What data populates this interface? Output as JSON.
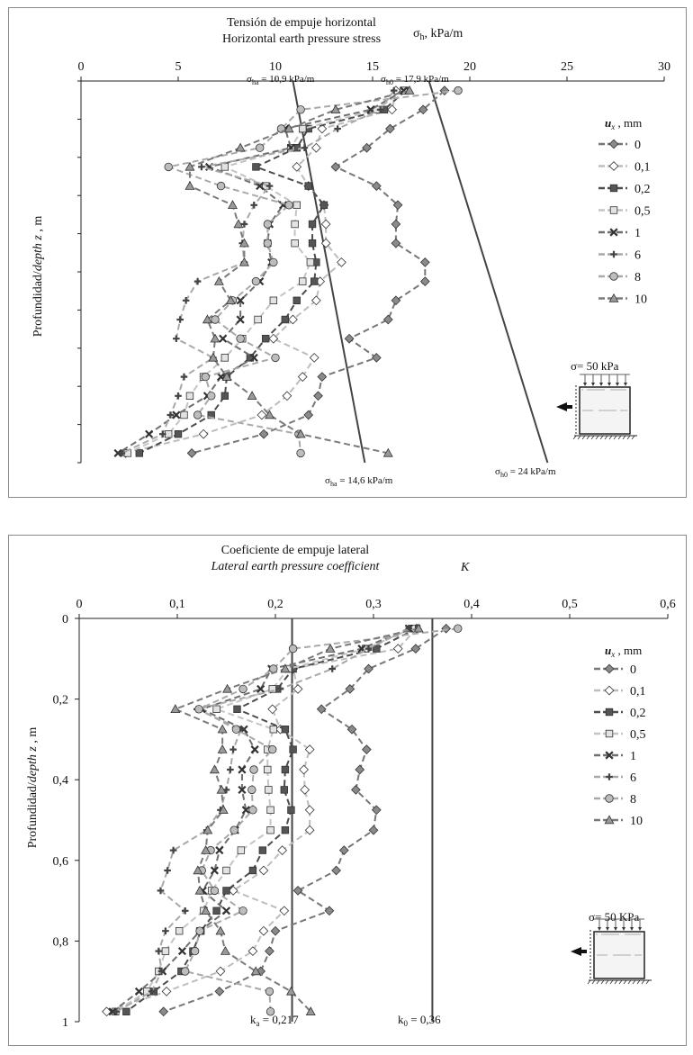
{
  "charts": [
    {
      "title_es": "Tensión de empuje horizontal",
      "title_en": "Horizontal earth pressure stress",
      "axis_unit_main": "σ",
      "axis_unit_sub": "h",
      "axis_unit_rest": ", kPa/m",
      "ylabel_main": "Profundidad/",
      "ylabel_italic": "depth  z",
      "ylabel_rest": " , m",
      "legend_title_italic": "u",
      "legend_title_sub": "x",
      "legend_title_rest": " , mm",
      "inset_label": "σ= 50 kPa",
      "annotations": [
        {
          "sym": "σ",
          "sub": "ha",
          "rest": " = 10,9 kPa/m"
        },
        {
          "sym": "σ",
          "sub": "h0",
          "rest": " = 17,9 kPa/m"
        },
        {
          "sym": "σ",
          "sub": "ha",
          "rest": " = 14,6 kPa/m"
        },
        {
          "sym": "σ",
          "sub": "h0",
          "rest": " = 24 kPa/m"
        }
      ]
    },
    {
      "title_es": "Coeficiente de empuje lateral",
      "title_en": "Lateral earth pressure coefficient",
      "axis_symbol": "K",
      "ylabel_main": "Profundidad/",
      "ylabel_italic": "depth  z",
      "ylabel_rest": " , m",
      "legend_title_italic": "u",
      "legend_title_sub": "x",
      "legend_title_rest": " , mm",
      "inset_label": "σ= 50 KPa",
      "annotations": [
        {
          "sym": "k",
          "sub": "a",
          "rest": " = 0,217"
        },
        {
          "sym": "k",
          "sub": "0",
          "rest": " = 0,36"
        }
      ]
    }
  ],
  "chart_data": [
    {
      "type": "line",
      "xlim": [
        0,
        30
      ],
      "x_ticks": [
        0,
        5,
        10,
        15,
        20,
        25,
        30
      ],
      "x_tick_labels": [
        "0",
        "5",
        "10",
        "15",
        "20",
        "25",
        "30"
      ],
      "x_axis_position": "top",
      "ylim": [
        0,
        1
      ],
      "y_reversed": true,
      "y_tick_labels_shown": false,
      "grid": false,
      "legend_position": "right",
      "depths": [
        0.025,
        0.075,
        0.125,
        0.175,
        0.225,
        0.275,
        0.325,
        0.375,
        0.425,
        0.475,
        0.525,
        0.575,
        0.625,
        0.675,
        0.725,
        0.775,
        0.825,
        0.875,
        0.925,
        0.975
      ],
      "series": [
        {
          "name": "0",
          "values": [
            18.7,
            17.6,
            15.9,
            14.7,
            13.1,
            15.2,
            16.3,
            16.2,
            16.2,
            17.7,
            17.7,
            16.2,
            15.8,
            13.8,
            15.2,
            12.4,
            12.2,
            11.7,
            9.4,
            5.7
          ]
        },
        {
          "name": "0,1",
          "values": [
            16.2,
            16.0,
            12.4,
            12.1,
            11.1,
            11.7,
            12.5,
            12.6,
            12.6,
            13.4,
            12.3,
            12.1,
            10.9,
            9.9,
            12.0,
            11.4,
            10.6,
            9.3,
            6.3,
            2.3
          ]
        },
        {
          "name": "0,2",
          "values": [
            16.7,
            15.6,
            11.7,
            11.1,
            9.0,
            11.7,
            12.5,
            11.9,
            11.9,
            12.1,
            12.0,
            11.1,
            10.5,
            9.5,
            8.7,
            7.5,
            7.4,
            6.7,
            5.0,
            3.0
          ]
        },
        {
          "name": "0,5",
          "values": [
            16.6,
            15.2,
            11.4,
            10.8,
            7.4,
            9.5,
            11.1,
            11.0,
            11.0,
            11.8,
            11.4,
            9.9,
            9.1,
            8.3,
            7.4,
            6.3,
            5.6,
            5.3,
            4.5,
            2.4
          ]
        },
        {
          "name": "1",
          "values": [
            16.6,
            14.9,
            10.5,
            10.8,
            6.6,
            9.2,
            10.4,
            9.7,
            9.6,
            9.8,
            9.2,
            8.2,
            8.2,
            7.3,
            8.9,
            7.2,
            6.5,
            4.9,
            3.5,
            1.9
          ]
        },
        {
          "name": "6",
          "values": [
            16.1,
            15.4,
            13.2,
            11.5,
            6.2,
            9.7,
            8.9,
            8.4,
            8.3,
            8.4,
            6.0,
            5.4,
            5.1,
            4.9,
            6.8,
            5.3,
            5.0,
            4.6,
            4.2,
            2.1
          ]
        },
        {
          "name": "8",
          "values": [
            19.4,
            11.3,
            10.3,
            9.2,
            4.5,
            7.2,
            10.7,
            9.6,
            9.6,
            9.9,
            9.0,
            7.8,
            6.9,
            8.2,
            10.0,
            6.4,
            6.7,
            6.0,
            11.2,
            11.3
          ]
        },
        {
          "name": "10",
          "values": [
            16.9,
            13.1,
            10.7,
            8.2,
            5.6,
            5.6,
            7.8,
            8.1,
            8.4,
            8.4,
            7.1,
            7.7,
            6.5,
            6.9,
            6.8,
            7.5,
            8.8,
            9.7,
            11.3,
            15.8
          ]
        }
      ],
      "reference_lines": [
        {
          "label": "σha",
          "x_top": 10.9,
          "x_bottom": 14.6
        },
        {
          "label": "σh0",
          "x_top": 17.9,
          "x_bottom": 24.0
        }
      ]
    },
    {
      "type": "line",
      "xlim": [
        0,
        0.6
      ],
      "x_ticks": [
        0,
        0.1,
        0.2,
        0.3,
        0.4,
        0.5,
        0.6
      ],
      "x_tick_labels": [
        "0",
        "0,1",
        "0,2",
        "0,3",
        "0,4",
        "0,5",
        "0,6"
      ],
      "x_axis_position": "top",
      "ylim": [
        0,
        1
      ],
      "y_reversed": true,
      "y_ticks": [
        0,
        0.2,
        0.4,
        0.6,
        0.8,
        1
      ],
      "y_tick_labels": [
        "0",
        "0,2",
        "0,4",
        "0,6",
        "0,8",
        "1"
      ],
      "grid": false,
      "legend_position": "right",
      "depths": [
        0.025,
        0.075,
        0.125,
        0.175,
        0.225,
        0.275,
        0.325,
        0.375,
        0.425,
        0.475,
        0.525,
        0.575,
        0.625,
        0.675,
        0.725,
        0.775,
        0.825,
        0.875,
        0.925,
        0.975
      ],
      "series": [
        {
          "name": "0",
          "values": [
            0.374,
            0.343,
            0.295,
            0.276,
            0.247,
            0.278,
            0.293,
            0.286,
            0.282,
            0.303,
            0.3,
            0.27,
            0.262,
            0.223,
            0.255,
            0.2,
            0.194,
            0.185,
            0.143,
            0.086
          ]
        },
        {
          "name": "0,1",
          "values": [
            0.344,
            0.325,
            0.218,
            0.223,
            0.197,
            0.205,
            0.235,
            0.229,
            0.23,
            0.235,
            0.235,
            0.207,
            0.188,
            0.157,
            0.209,
            0.188,
            0.177,
            0.144,
            0.089,
            0.028
          ]
        },
        {
          "name": "0,2",
          "values": [
            0.344,
            0.303,
            0.218,
            0.202,
            0.161,
            0.21,
            0.218,
            0.21,
            0.209,
            0.216,
            0.21,
            0.187,
            0.177,
            0.15,
            0.14,
            0.124,
            0.116,
            0.104,
            0.076,
            0.048
          ]
        },
        {
          "name": "0,5",
          "values": [
            0.339,
            0.292,
            0.213,
            0.197,
            0.14,
            0.198,
            0.192,
            0.192,
            0.193,
            0.195,
            0.195,
            0.165,
            0.15,
            0.135,
            0.127,
            0.102,
            0.088,
            0.081,
            0.069,
            0.037
          ]
        },
        {
          "name": "1",
          "values": [
            0.336,
            0.288,
            0.196,
            0.185,
            0.125,
            0.168,
            0.179,
            0.166,
            0.166,
            0.17,
            0.159,
            0.143,
            0.138,
            0.126,
            0.15,
            0.123,
            0.105,
            0.085,
            0.061,
            0.034
          ]
        },
        {
          "name": "6",
          "values": [
            0.336,
            0.295,
            0.258,
            0.205,
            0.12,
            0.165,
            0.157,
            0.154,
            0.15,
            0.144,
            0.13,
            0.096,
            0.09,
            0.083,
            0.108,
            0.088,
            0.081,
            0.084,
            0.074,
            0.038
          ]
        },
        {
          "name": "8",
          "values": [
            0.386,
            0.218,
            0.198,
            0.167,
            0.122,
            0.16,
            0.197,
            0.178,
            0.176,
            0.177,
            0.158,
            0.134,
            0.125,
            0.138,
            0.167,
            0.123,
            0.118,
            0.108,
            0.194,
            0.195
          ]
        },
        {
          "name": "10",
          "values": [
            0.346,
            0.256,
            0.21,
            0.151,
            0.098,
            0.146,
            0.146,
            0.138,
            0.145,
            0.147,
            0.131,
            0.129,
            0.121,
            0.123,
            0.129,
            0.144,
            0.149,
            0.18,
            0.216,
            0.236
          ]
        }
      ],
      "reference_lines": [
        {
          "label": "ka",
          "x_top": 0.217,
          "x_bottom": 0.217
        },
        {
          "label": "k0",
          "x_top": 0.36,
          "x_bottom": 0.36
        }
      ]
    }
  ],
  "series_styles": [
    {
      "marker": "diamond",
      "color": "#777777",
      "fill": "#8a8a8a"
    },
    {
      "marker": "diamond",
      "color": "#bdbdbd",
      "fill": "#ffffff"
    },
    {
      "marker": "square",
      "color": "#4d4d4d",
      "fill": "#555555"
    },
    {
      "marker": "square",
      "color": "#c4c4c4",
      "fill": "#e3e3e3"
    },
    {
      "marker": "cross",
      "color": "#6f6f6f",
      "fill": "#888888"
    },
    {
      "marker": "plus",
      "color": "#a8a8a8",
      "fill": "#888888"
    },
    {
      "marker": "circle",
      "color": "#a9a9a9",
      "fill": "#bdbdbd"
    },
    {
      "marker": "triangle",
      "color": "#7a7a7a",
      "fill": "#9a9a9a"
    }
  ],
  "colors": {
    "reference_line": "#444444",
    "axis": "#222222",
    "frame": "#8a8a8a"
  }
}
